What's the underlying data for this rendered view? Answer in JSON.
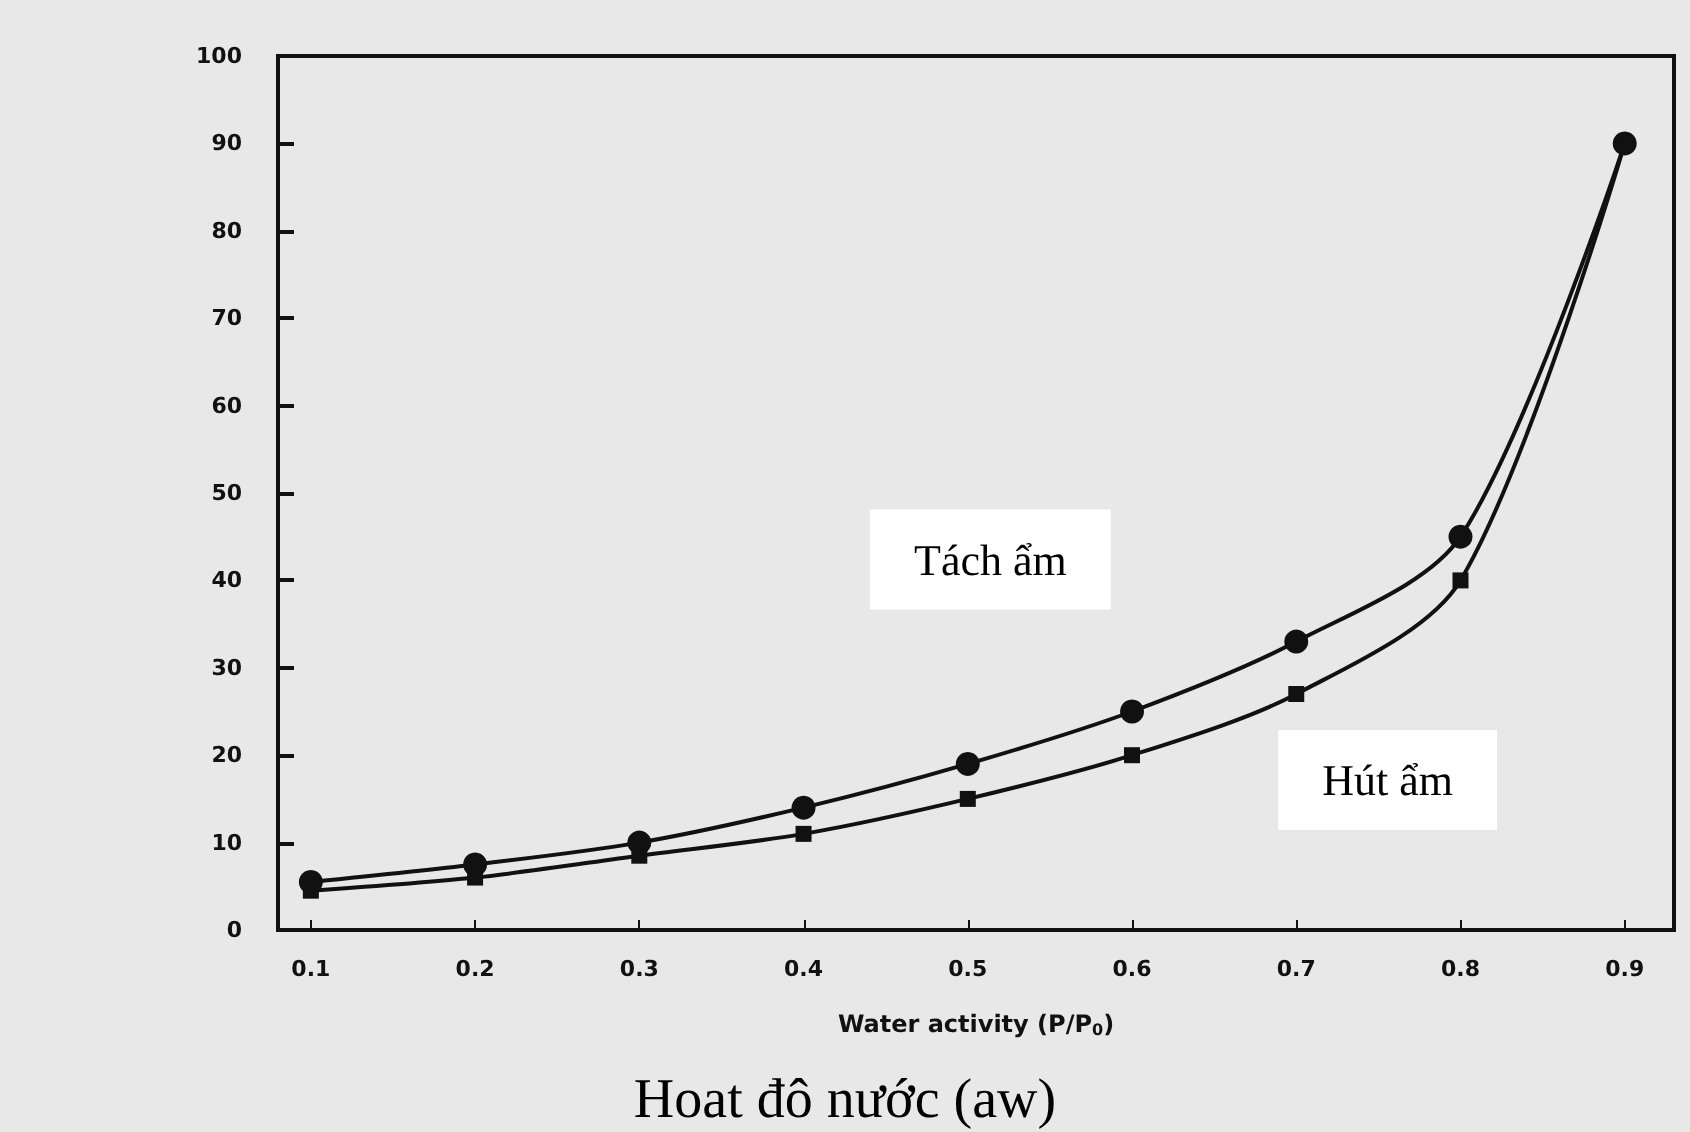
{
  "chart_data": {
    "type": "line",
    "xlabel": "Water activity (P/P$_{0}$)",
    "annotations": [
      "Hoat đô nước (aw)"
    ],
    "x": [
      0.1,
      0.2,
      0.3,
      0.4,
      0.5,
      0.6,
      0.7,
      0.8,
      0.9
    ],
    "series": [
      {
        "name": "Tách ẩm",
        "color": "#111111",
        "marker": "circle",
        "values": [
          5.5,
          7.5,
          10,
          14,
          19,
          25,
          33,
          45,
          90
        ]
      },
      {
        "name": "Hút ẩm",
        "color": "#111111",
        "marker": "square",
        "values": [
          4.5,
          6,
          8.5,
          11,
          15,
          20,
          27,
          40,
          90
        ]
      }
    ],
    "xlim": [
      0.08,
      0.93
    ],
    "xticks": [
      0.1,
      0.2,
      0.3,
      0.4,
      0.5,
      0.6,
      0.7,
      0.8,
      0.9
    ],
    "ylim": [
      0,
      100
    ],
    "yticks": [
      0,
      10,
      20,
      30,
      40,
      50,
      60,
      70,
      80,
      90,
      100
    ],
    "grid": false,
    "legend": false,
    "line_style": "solid"
  }
}
